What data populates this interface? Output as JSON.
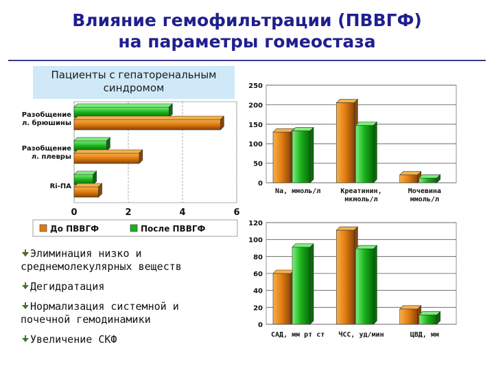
{
  "slide": {
    "title_line1": "Влияние гемофильтрации (ПВВГФ)",
    "title_line2": "на параметры гомеостаза",
    "callout_line1": "Пациенты с гепаторенальным",
    "callout_line2": "синдромом"
  },
  "bullets": [
    {
      "line1": "Элиминация низко и",
      "line2": "среднемолекулярных веществ"
    },
    {
      "line1": "Дегидратация",
      "line2": ""
    },
    {
      "line1": "Нормализация системной и",
      "line2": "почечной гемодинамики"
    },
    {
      "line1": "Увеличение СКФ",
      "line2": ""
    }
  ],
  "colors": {
    "before": "#e07b10",
    "after": "#19b019",
    "title": "#1f1f8f",
    "callout_bg": "#cfe9f8"
  },
  "chart_data": [
    {
      "type": "bar",
      "orientation": "horizontal",
      "categories": [
        "Разобщение л. брюшины",
        "Разобщение л. плевры",
        "Ri-ПА"
      ],
      "category_lines": [
        [
          "Разобщение",
          "л. брюшины"
        ],
        [
          "Разобщение",
          "л. плевры"
        ],
        [
          "Ri-ПА"
        ]
      ],
      "series": [
        {
          "name": "До ПВВГФ",
          "values": [
            5.4,
            2.4,
            0.9
          ]
        },
        {
          "name": "После ПВВГФ",
          "values": [
            3.5,
            1.2,
            0.7
          ]
        }
      ],
      "xlim": [
        0,
        6
      ],
      "xticks": [
        0,
        2,
        4,
        6
      ],
      "legend": [
        "До ПВВГФ",
        "После ПВВГФ"
      ],
      "legend_position": "bottom"
    },
    {
      "type": "bar",
      "categories": [
        "Na, ммоль/л",
        "Креатинин, мкмоль/л",
        "Мочевина ммоль/л"
      ],
      "category_lines": [
        [
          "Na, ммоль/л"
        ],
        [
          "Креатинин,",
          "мкмоль/л"
        ],
        [
          "Мочевина",
          "ммоль/л"
        ]
      ],
      "series": [
        {
          "name": "До ПВВГФ",
          "values": [
            130,
            205,
            20
          ]
        },
        {
          "name": "После ПВВГФ",
          "values": [
            133,
            147,
            12
          ]
        }
      ],
      "ylim": [
        0,
        250
      ],
      "yticks": [
        0,
        50,
        100,
        150,
        200,
        250
      ],
      "grid": true
    },
    {
      "type": "bar",
      "categories": [
        "САД, мм рт ст",
        "ЧСС, уд/мин",
        "ЦВД, мм"
      ],
      "category_lines": [
        [
          "САД, мм рт ст"
        ],
        [
          "ЧСС, уд/мин"
        ],
        [
          "ЦВД, мм"
        ]
      ],
      "series": [
        {
          "name": "До ПВВГФ",
          "values": [
            60,
            111,
            18
          ]
        },
        {
          "name": "После ПВВГФ",
          "values": [
            91,
            89,
            11
          ]
        }
      ],
      "ylim": [
        0,
        120
      ],
      "yticks": [
        0,
        20,
        40,
        60,
        80,
        100,
        120
      ],
      "grid": true
    }
  ]
}
